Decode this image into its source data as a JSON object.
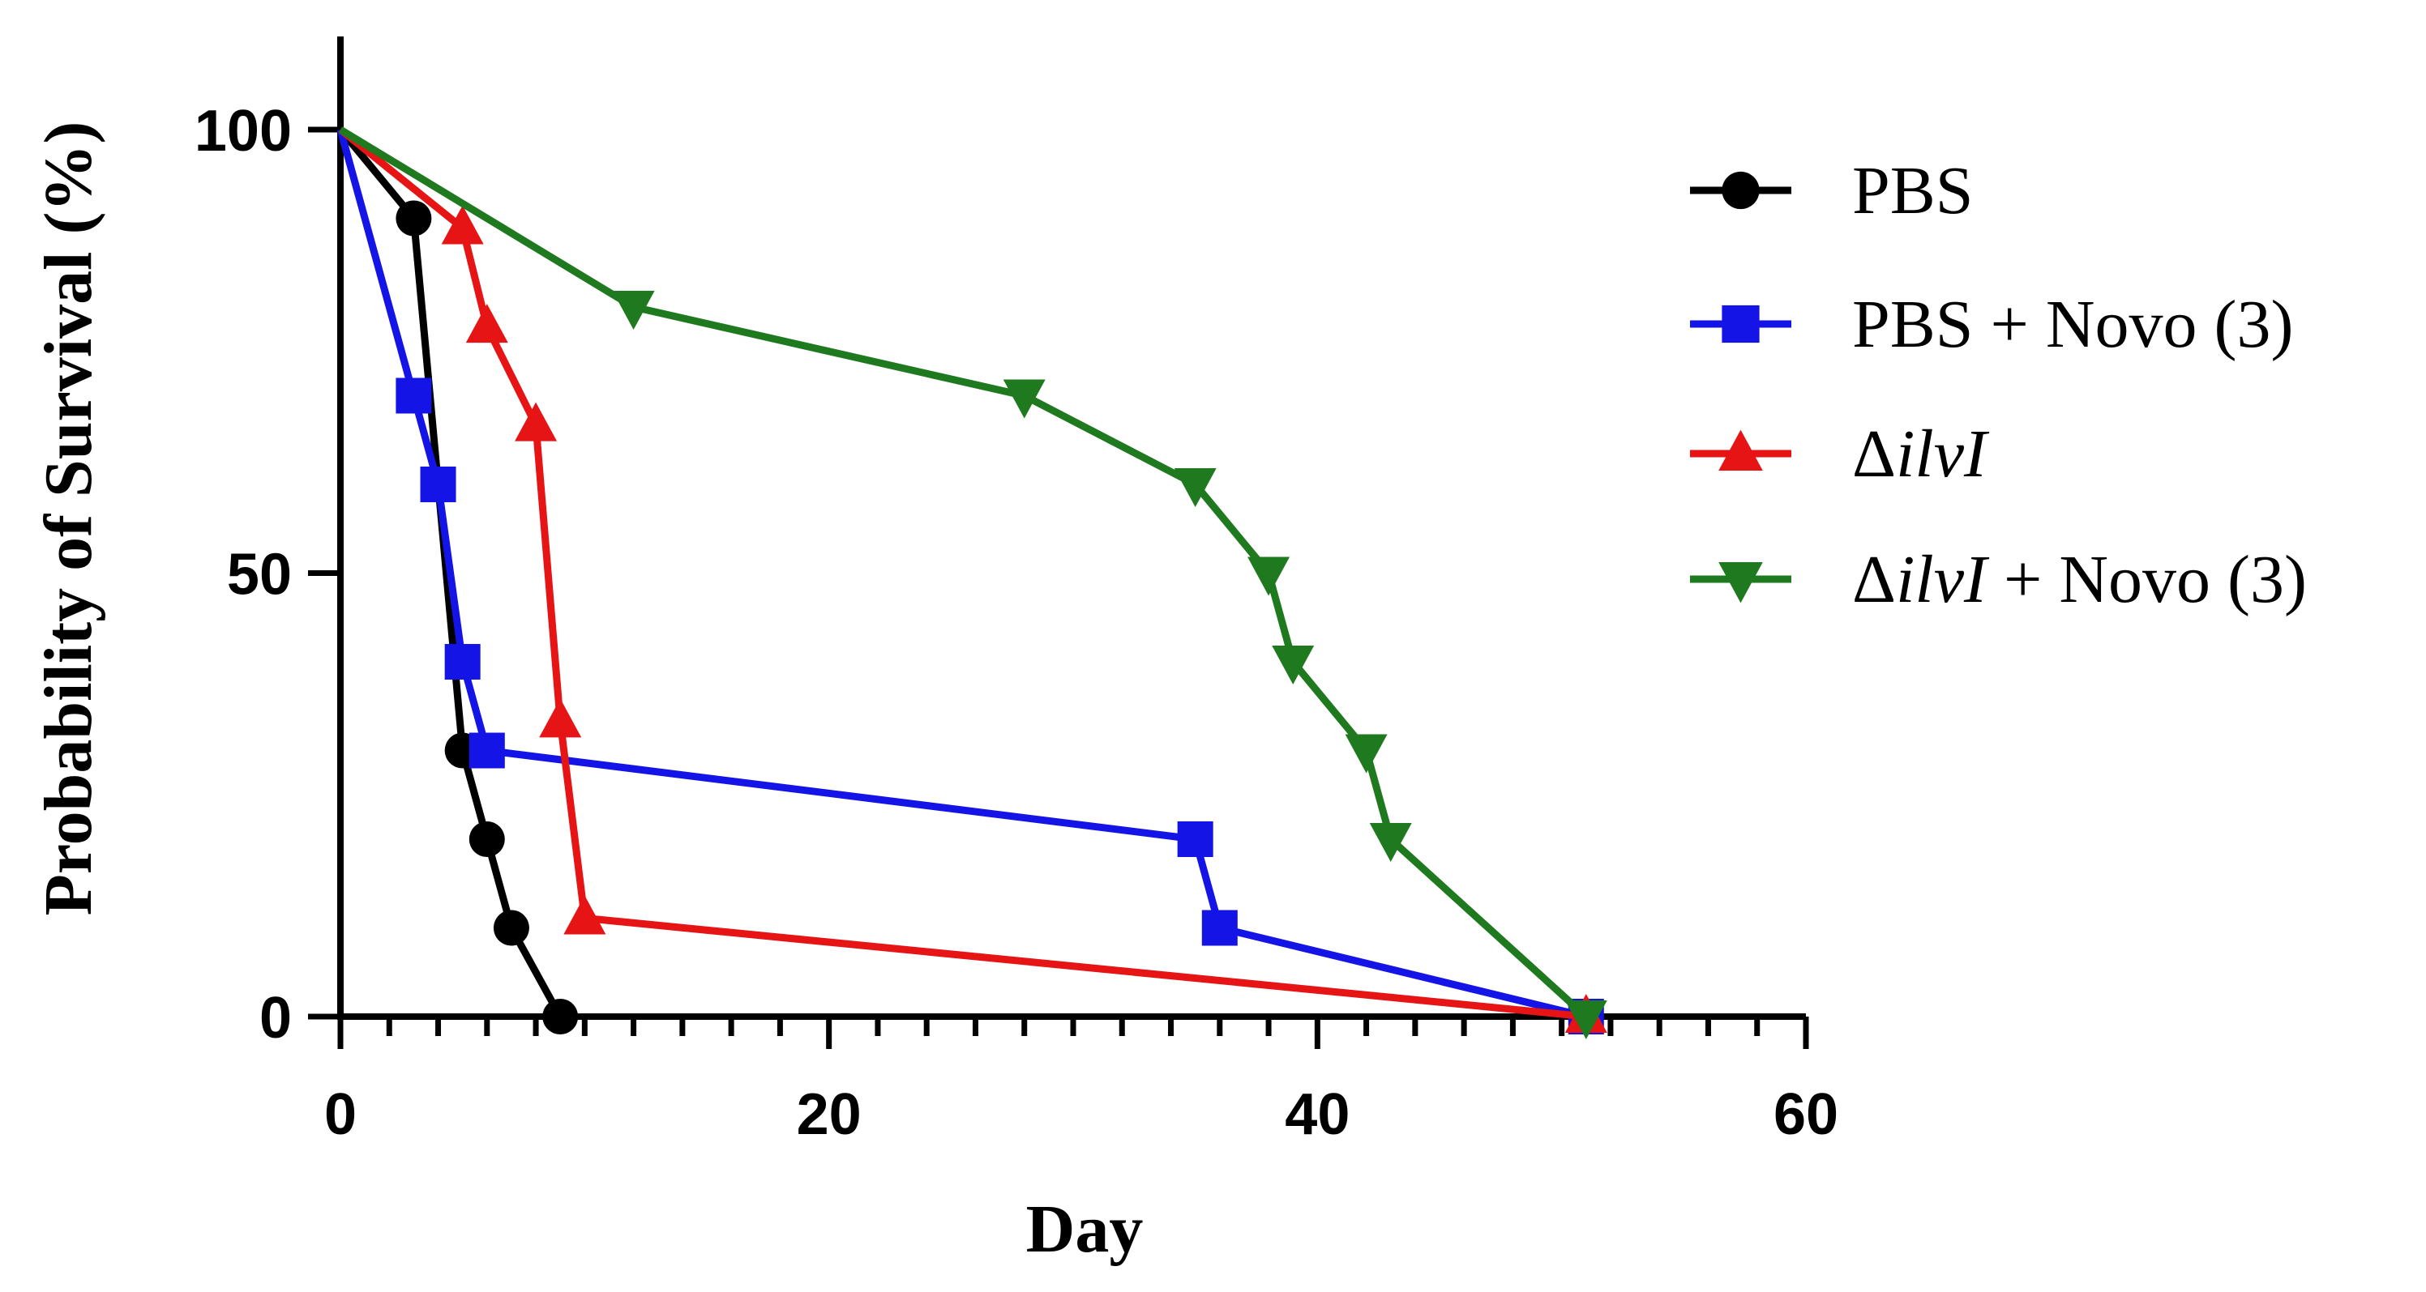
{
  "chart_data": {
    "type": "line",
    "title": "",
    "xlabel": "Day",
    "ylabel": "Probability of Survival (%)",
    "xlim": [
      0,
      60
    ],
    "ylim": [
      0,
      110
    ],
    "xticks": [
      0,
      20,
      40,
      60
    ],
    "xtick_labels": [
      "0",
      "20",
      "40",
      "60"
    ],
    "yticks": [
      0,
      50,
      100
    ],
    "ytick_labels": [
      "0",
      "50",
      "100"
    ],
    "legend_position": "right",
    "series": [
      {
        "name": "PBS",
        "legend_base": "PBS",
        "legend_italic": "",
        "legend_suffix": "",
        "color": "#000000",
        "marker": "circle",
        "x": [
          0,
          3,
          4,
          5,
          6,
          7,
          9
        ],
        "y": [
          100,
          90,
          60,
          30,
          20,
          10,
          0
        ]
      },
      {
        "name": "PBS + Novo (3)",
        "legend_base": "PBS + Novo (3)",
        "legend_italic": "",
        "legend_suffix": "",
        "color": "#1414e6",
        "marker": "square",
        "x": [
          0,
          3,
          4,
          5,
          6,
          35,
          36,
          51
        ],
        "y": [
          100,
          70,
          60,
          40,
          30,
          20,
          10,
          0
        ]
      },
      {
        "name": "ΔilvI",
        "legend_base": "Δ",
        "legend_italic": "ilvI",
        "legend_suffix": "",
        "color": "#e61414",
        "marker": "triangle-up",
        "x": [
          0,
          5,
          6,
          8,
          9,
          10,
          51
        ],
        "y": [
          100,
          88.9,
          77.8,
          66.7,
          33.3,
          11.1,
          0
        ]
      },
      {
        "name": "ΔilvI + Novo (3)",
        "legend_base": "Δ",
        "legend_italic": "ilvI",
        "legend_suffix": " + Novo (3)",
        "color": "#1f7a1f",
        "marker": "triangle-down",
        "x": [
          0,
          12,
          28,
          35,
          38,
          39,
          42,
          43,
          51
        ],
        "y": [
          100,
          80,
          70,
          60,
          50,
          40,
          30,
          20,
          0
        ]
      }
    ]
  }
}
